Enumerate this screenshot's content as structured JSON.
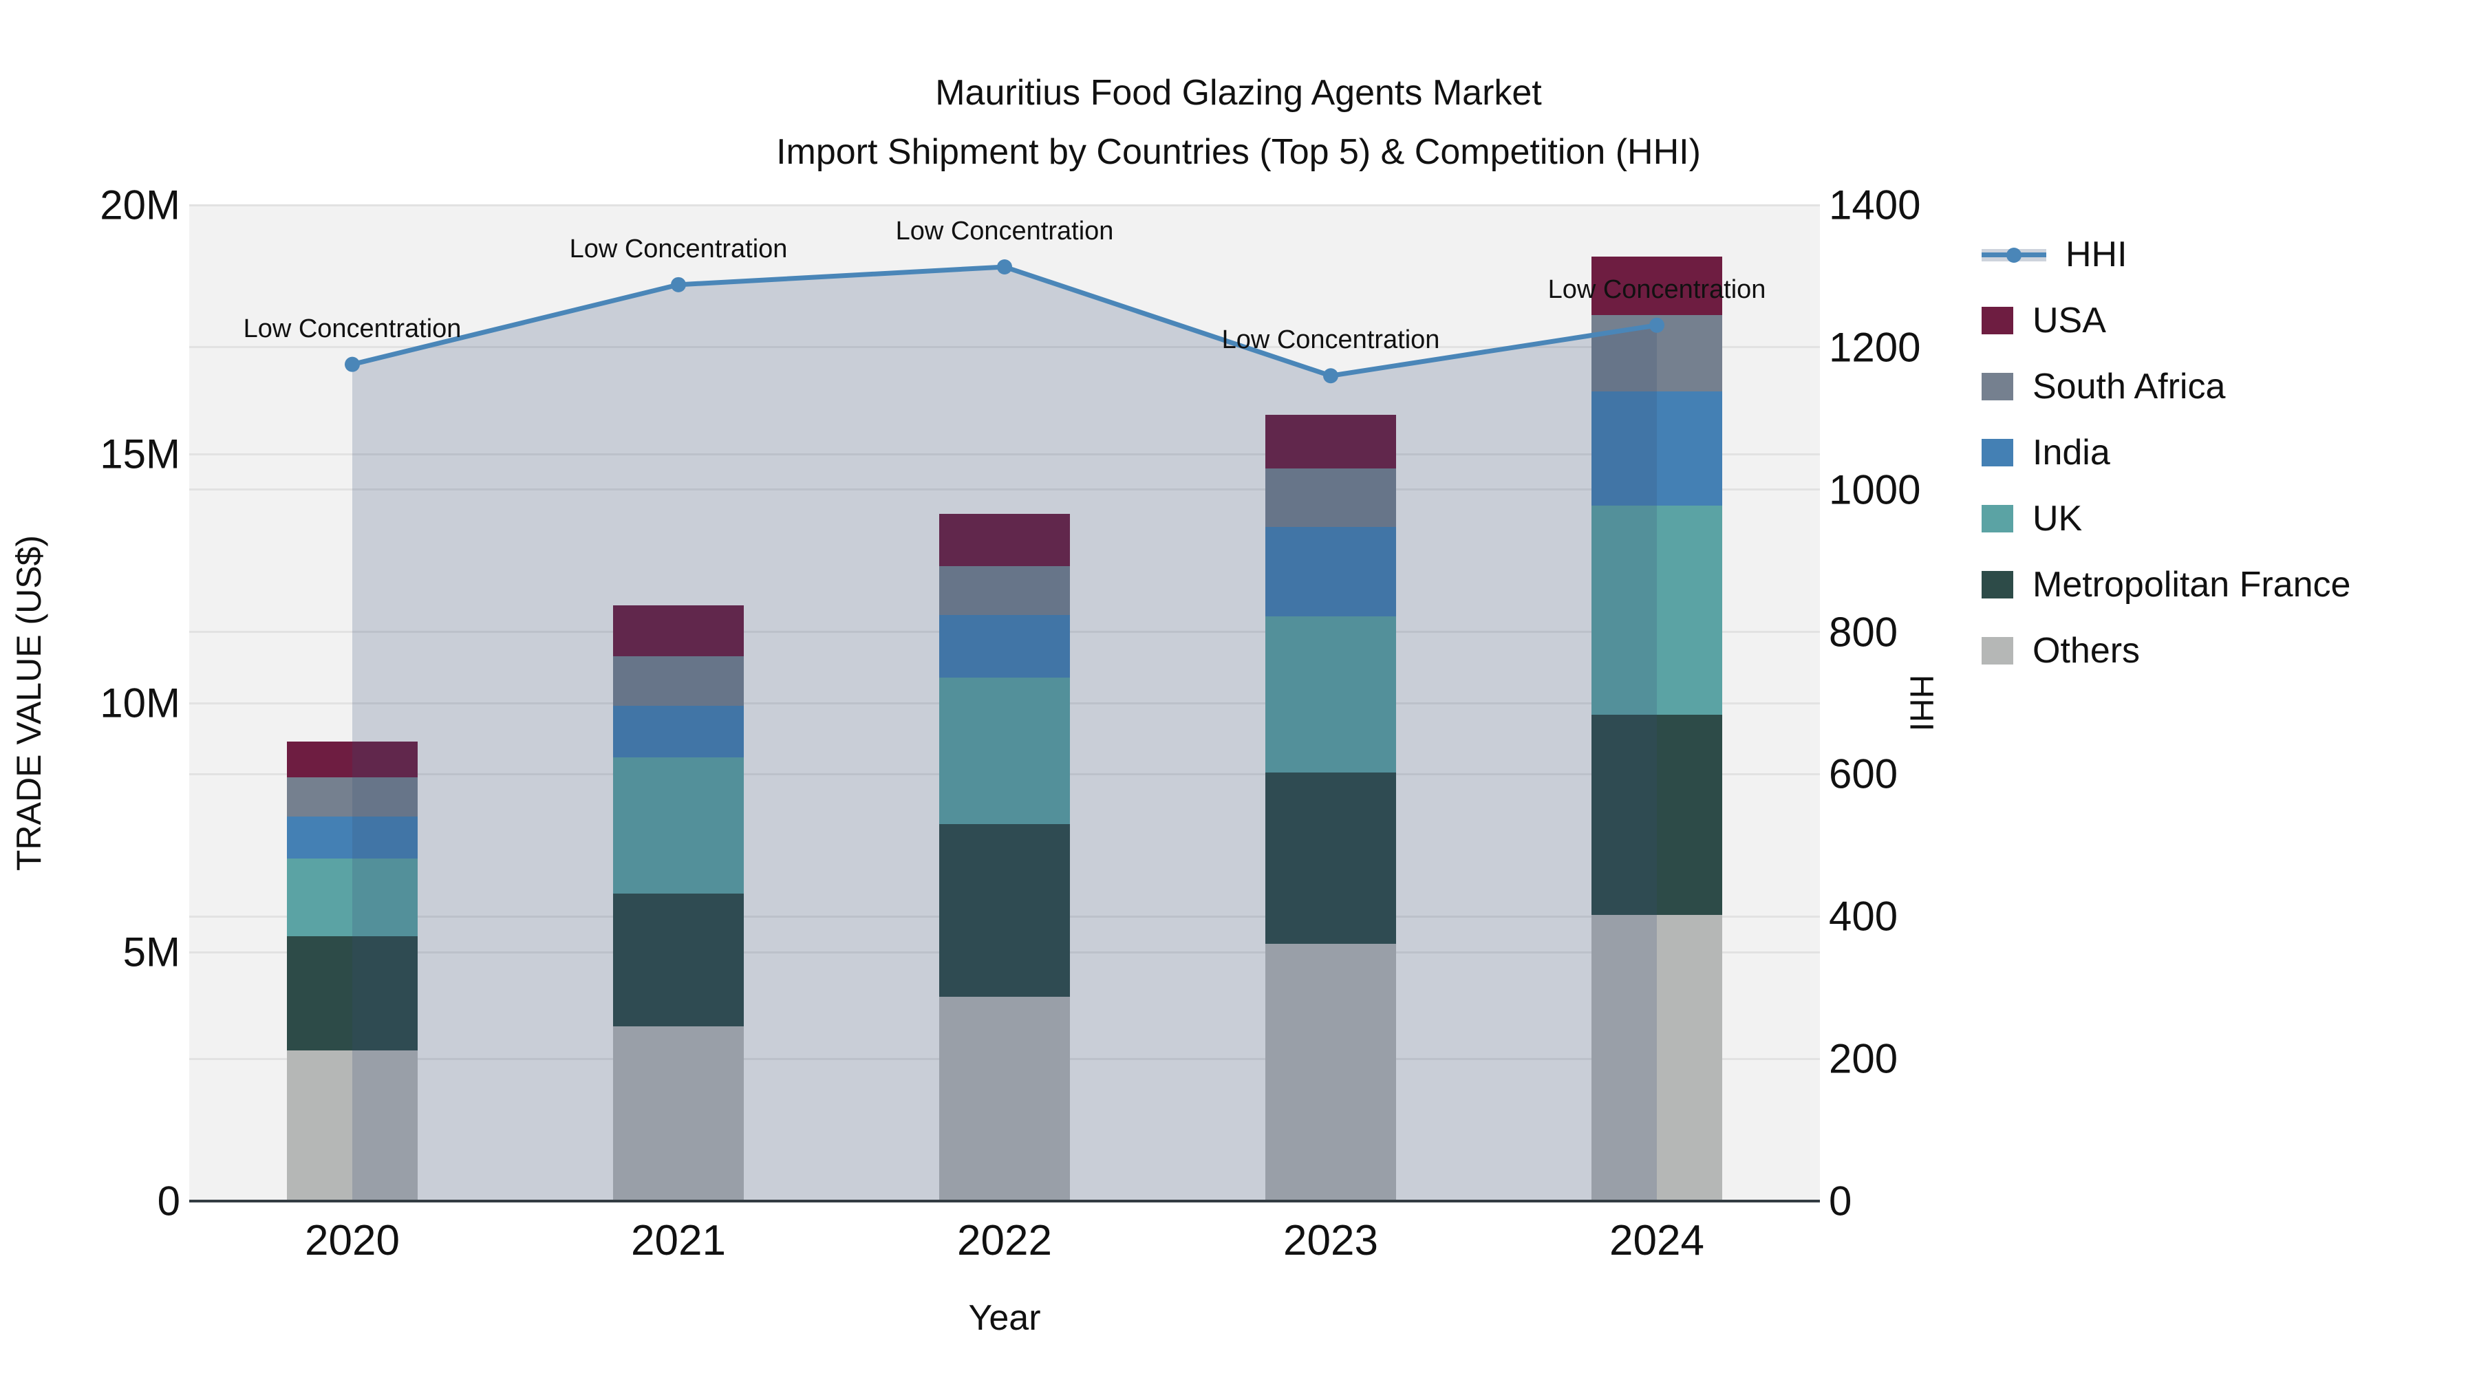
{
  "chart_data": {
    "type": "bar+line",
    "title": "Mauritius Food Glazing Agents Market",
    "subtitle": "Import Shipment by Countries (Top 5) & Competition (HHI)",
    "xlabel": "Year",
    "ylabel_left": "TRADE VALUE (US$)",
    "ylabel_right": "HHI",
    "categories": [
      "2020",
      "2021",
      "2022",
      "2023",
      "2024"
    ],
    "bar_unit": "millions US$",
    "stacked": true,
    "series": [
      {
        "name": "USA",
        "color": "#6e1d41",
        "values": [
          0.72,
          1.02,
          1.05,
          1.08,
          1.17
        ]
      },
      {
        "name": "South Africa",
        "color": "#75808f",
        "values": [
          0.79,
          0.99,
          0.98,
          1.18,
          1.53
        ]
      },
      {
        "name": "India",
        "color": "#4480b4",
        "values": [
          0.84,
          1.04,
          1.26,
          1.79,
          2.29
        ]
      },
      {
        "name": "UK",
        "color": "#5ba3a4",
        "values": [
          1.56,
          2.74,
          2.94,
          3.14,
          4.21
        ]
      },
      {
        "name": "Metropolitan France",
        "color": "#2d4b48",
        "values": [
          2.29,
          2.66,
          3.47,
          3.43,
          4.01
        ]
      },
      {
        "name": "Others",
        "color": "#b5b7b6",
        "values": [
          3.03,
          3.51,
          4.1,
          5.17,
          5.75
        ]
      }
    ],
    "totals": [
      9.23,
      11.96,
      13.8,
      15.79,
      18.96
    ],
    "line": {
      "name": "HHI",
      "color": "#4a86b8",
      "area_fill": "rgba(54,78,120,0.22)",
      "values": [
        1176,
        1288,
        1313,
        1160,
        1231
      ],
      "axis": "right"
    },
    "annotations": [
      {
        "text": "Low Concentration",
        "category_index": 0
      },
      {
        "text": "Low Concentration",
        "category_index": 1
      },
      {
        "text": "Low Concentration",
        "category_index": 2
      },
      {
        "text": "Low Concentration",
        "category_index": 3
      },
      {
        "text": "Low Concentration",
        "category_index": 4
      }
    ],
    "axes": {
      "left": {
        "max": 20,
        "ticks": [
          {
            "v": 0,
            "label": "0"
          },
          {
            "v": 5,
            "label": "5M"
          },
          {
            "v": 10,
            "label": "10M"
          },
          {
            "v": 15,
            "label": "15M"
          },
          {
            "v": 20,
            "label": "20M"
          }
        ]
      },
      "right": {
        "max": 1400,
        "ticks": [
          {
            "v": 0,
            "label": "0"
          },
          {
            "v": 200,
            "label": "200"
          },
          {
            "v": 400,
            "label": "400"
          },
          {
            "v": 600,
            "label": "600"
          },
          {
            "v": 800,
            "label": "800"
          },
          {
            "v": 1000,
            "label": "1000"
          },
          {
            "v": 1200,
            "label": "1200"
          },
          {
            "v": 1400,
            "label": "1400"
          }
        ]
      }
    },
    "legend": {
      "position": "right",
      "entries": [
        "HHI",
        "USA",
        "South Africa",
        "India",
        "UK",
        "Metropolitan France",
        "Others"
      ]
    },
    "grid": true,
    "bar_width_frac": 0.4
  }
}
